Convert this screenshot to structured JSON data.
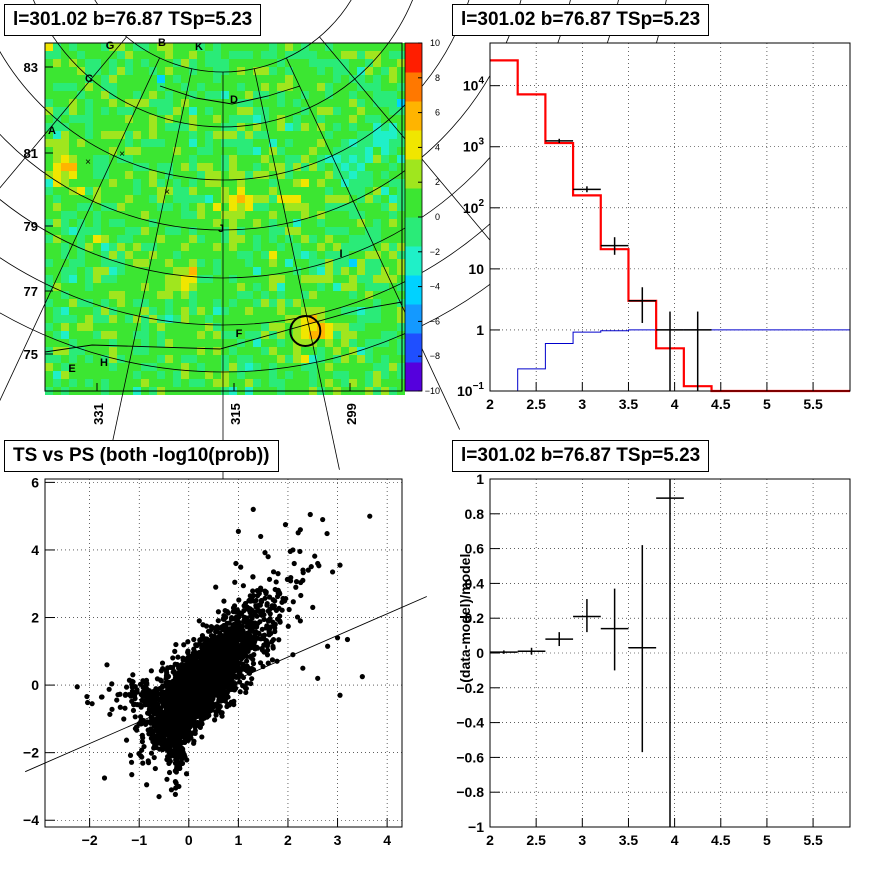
{
  "titles": {
    "skymap": "l=301.02 b=76.87 TSp=5.23",
    "spectrum": "l=301.02 b=76.87 TSp=5.23",
    "scatter": "TS vs PS (both -log10(prob))",
    "residual": "l=301.02 b=76.87 TSp=5.23"
  },
  "colors": {
    "data": "#000000",
    "model": "#ff0000",
    "background": "#0000cc",
    "grid": "#000000"
  },
  "chart_data": [
    {
      "type": "heatmap",
      "title": "l=301.02 b=76.87 TSp=5.23",
      "xlabel": "",
      "ylabel": "",
      "x_tick_labels": [
        "331",
        "315",
        "299"
      ],
      "y_tick_labels": [
        "75",
        "77",
        "79",
        "81",
        "83"
      ],
      "colorbar_ticks": [
        -10,
        -8,
        -6,
        -4,
        -2,
        0,
        2,
        4,
        6,
        8,
        10
      ],
      "colorbar_range": [
        -10,
        10
      ],
      "colorscale": [
        "#5500dd",
        "#1f4fff",
        "#1499ff",
        "#00d2ff",
        "#1ff0c8",
        "#2aeb78",
        "#3ce632",
        "#a0e61e",
        "#f0e600",
        "#ffb400",
        "#ff7800",
        "#ff1e00"
      ],
      "map_level": 0.5,
      "hotspots": [
        {
          "l": 336.5,
          "b": 80.6,
          "value": 4.5
        },
        {
          "l": 313.5,
          "b": 79.6,
          "value": 3
        },
        {
          "l": 302.5,
          "b": 76.0,
          "value": 5.5
        },
        {
          "l": 305.0,
          "b": 79.8,
          "value": 3
        },
        {
          "l": 320.5,
          "b": 77.5,
          "value": 3
        }
      ],
      "coldspots": [
        {
          "l": 293.5,
          "b": 81.5,
          "value": -2
        },
        {
          "l": 297.5,
          "b": 80.5,
          "value": -1.5
        }
      ],
      "marker_labels": [
        "A",
        "B",
        "C",
        "D",
        "E",
        "F",
        "G",
        "H",
        "I",
        "J",
        "K"
      ],
      "source_circle": {
        "l": 304.0,
        "b": 75.95
      }
    },
    {
      "type": "line",
      "title": "l=301.02 b=76.87 TSp=5.23",
      "xlabel": "",
      "ylabel": "",
      "xlim": [
        2,
        5.9
      ],
      "ylim": [
        0.1,
        50000
      ],
      "ylog": true,
      "x_ticks": [
        2,
        2.5,
        3,
        3.5,
        4,
        4.5,
        5,
        5.5
      ],
      "x_tick_labels": [
        "2",
        "2.5",
        "3",
        "3.5",
        "4",
        "4.5",
        "5",
        "5.5"
      ],
      "y_ticks": [
        0.1,
        1,
        10,
        100,
        1000,
        10000
      ],
      "y_tick_labels": [
        "10^-1",
        "1",
        "10",
        "10^2",
        "10^3",
        "10^4"
      ],
      "bin_edges": [
        2,
        2.3,
        2.6,
        2.9,
        3.2,
        3.5,
        3.8,
        4.1,
        4.4,
        5.9
      ],
      "model": [
        26000,
        7200,
        1150,
        160,
        21,
        3,
        0.5,
        0.12,
        0.1
      ],
      "background": [
        0.1,
        0.23,
        0.6,
        0.92,
        0.97,
        1.0,
        1.0,
        1.0,
        1.0
      ],
      "data": [
        {
          "x": 2.75,
          "y": 1250,
          "xerr": 0.15,
          "ylo": 1150,
          "yhi": 1350
        },
        {
          "x": 3.05,
          "y": 200,
          "xerr": 0.15,
          "ylo": 180,
          "yhi": 225
        },
        {
          "x": 3.35,
          "y": 24,
          "xerr": 0.15,
          "ylo": 17,
          "yhi": 33
        },
        {
          "x": 3.65,
          "y": 3,
          "xerr": 0.15,
          "ylo": 1.3,
          "yhi": 5
        },
        {
          "x": 3.95,
          "y": 1,
          "xerr": 0.15,
          "ylo": 0.1,
          "yhi": 2
        },
        {
          "x": 4.25,
          "y": 1,
          "xerr": 0.15,
          "ylo": 0.1,
          "yhi": 2
        }
      ]
    },
    {
      "type": "scatter",
      "title": "TS vs PS (both -log10(prob))",
      "xlabel": "",
      "ylabel": "",
      "xlim": [
        -2.9,
        4.3
      ],
      "ylim": [
        -4.2,
        6.1
      ],
      "x_ticks": [
        -2,
        -1,
        0,
        1,
        2,
        3,
        4
      ],
      "y_ticks": [
        -4,
        -2,
        0,
        2,
        4,
        6
      ],
      "fit_line": {
        "slope": 0.64,
        "intercept": -0.45
      },
      "points": [
        [
          3.65,
          5.0
        ],
        [
          2.45,
          5.05
        ],
        [
          1.3,
          5.2
        ],
        [
          2.7,
          4.9
        ],
        [
          1.95,
          4.75
        ],
        [
          2.25,
          4.6
        ],
        [
          1.0,
          4.55
        ],
        [
          1.45,
          4.4
        ],
        [
          2.1,
          4.0
        ],
        [
          2.6,
          3.6
        ],
        [
          3.05,
          3.55
        ],
        [
          2.9,
          3.35
        ],
        [
          1.8,
          3.3
        ],
        [
          2.3,
          3.1
        ],
        [
          0.95,
          3.6
        ],
        [
          1.6,
          3.8
        ],
        [
          3.2,
          1.35
        ],
        [
          3.0,
          1.4
        ],
        [
          2.8,
          1.15
        ],
        [
          3.5,
          0.25
        ],
        [
          3.05,
          -0.3
        ],
        [
          2.3,
          0.5
        ],
        [
          2.6,
          0.2
        ],
        [
          2.1,
          0.9
        ],
        [
          2.25,
          1.9
        ],
        [
          2.5,
          2.3
        ],
        [
          -1.7,
          -2.75
        ],
        [
          -1.15,
          -2.65
        ],
        [
          -2.25,
          -0.05
        ],
        [
          -1.95,
          -0.55
        ],
        [
          -1.75,
          -0.35
        ],
        [
          -1.65,
          0.6
        ],
        [
          -0.6,
          -3.3
        ],
        [
          -0.35,
          -3.1
        ],
        [
          -0.85,
          -2.95
        ],
        [
          -0.2,
          -3.0
        ]
      ]
    },
    {
      "type": "scatter",
      "title": "l=301.02 b=76.87 TSp=5.23",
      "xlabel": "",
      "ylabel": "(data-model)/model",
      "xlim": [
        2,
        5.9
      ],
      "ylim": [
        -1,
        1
      ],
      "x_ticks": [
        2,
        2.5,
        3,
        3.5,
        4,
        4.5,
        5,
        5.5
      ],
      "y_ticks": [
        -1,
        -0.8,
        -0.6,
        -0.4,
        -0.2,
        0,
        0.2,
        0.4,
        0.6,
        0.8,
        1
      ],
      "y_tick_labels": [
        "-1",
        "-0.8",
        "-0.6",
        "-0.4",
        "-0.2",
        "0",
        "0.2",
        "0.4",
        "0.6",
        "0.8",
        "1"
      ],
      "points": [
        {
          "x": 2.15,
          "y": 0.005,
          "xerr": 0.15,
          "ylo": -0.005,
          "yhi": 0.015
        },
        {
          "x": 2.45,
          "y": 0.01,
          "xerr": 0.15,
          "ylo": -0.01,
          "yhi": 0.03
        },
        {
          "x": 2.75,
          "y": 0.08,
          "xerr": 0.15,
          "ylo": 0.04,
          "yhi": 0.12
        },
        {
          "x": 3.05,
          "y": 0.21,
          "xerr": 0.15,
          "ylo": 0.12,
          "yhi": 0.31
        },
        {
          "x": 3.35,
          "y": 0.14,
          "xerr": 0.15,
          "ylo": -0.1,
          "yhi": 0.37
        },
        {
          "x": 3.65,
          "y": 0.03,
          "xerr": 0.15,
          "ylo": -0.57,
          "yhi": 0.62
        },
        {
          "x": 3.95,
          "y": 0.89,
          "xerr": 0.15,
          "ylo": -1.0,
          "yhi": 1.0
        }
      ]
    }
  ]
}
